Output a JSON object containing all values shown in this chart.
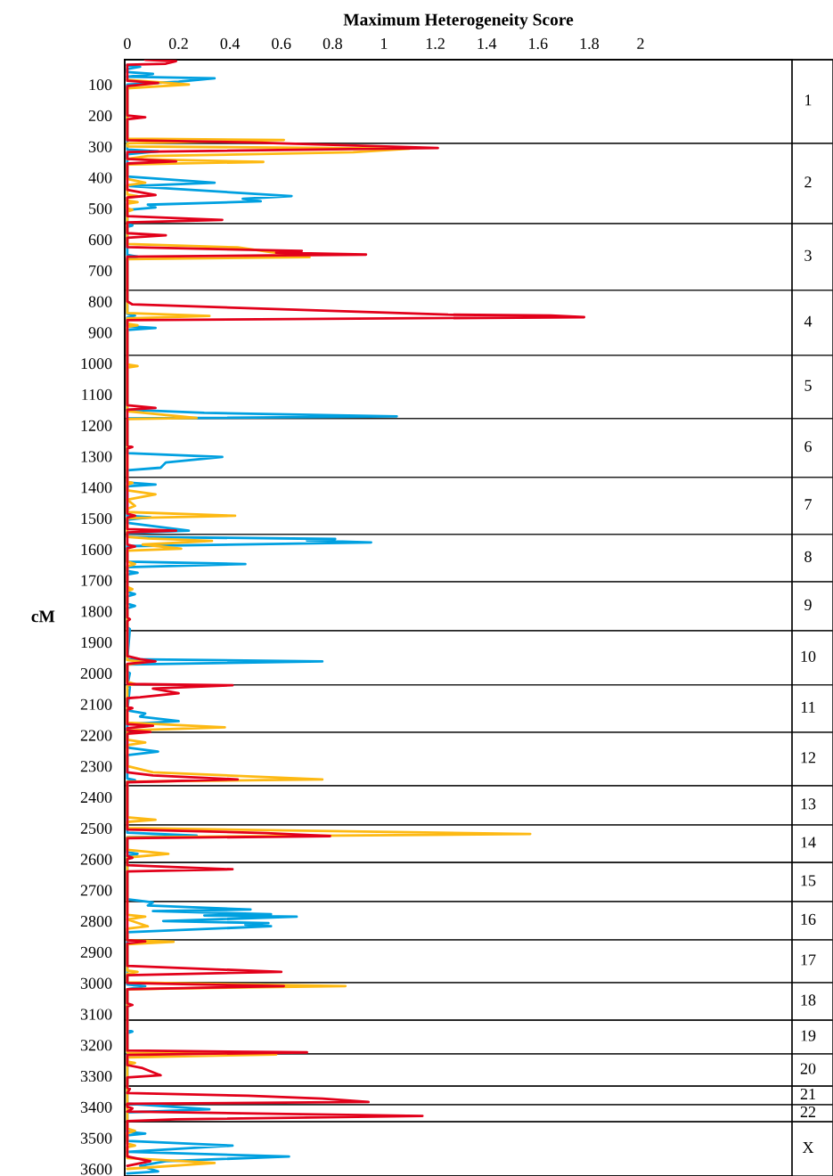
{
  "chart_data": {
    "type": "line",
    "orientation": "horizontal",
    "xlabel": "Maximum Heterogeneity Score",
    "ylabel": "cM",
    "xlim": [
      -0.01,
      2.59
    ],
    "xticks": [
      0,
      0.2,
      0.4,
      0.6,
      0.8,
      1,
      1.2,
      1.4,
      1.6,
      1.8,
      2
    ],
    "ylim": [
      3623,
      20
    ],
    "yticks": [
      100,
      200,
      300,
      400,
      500,
      600,
      700,
      800,
      900,
      1000,
      1100,
      1200,
      1300,
      1400,
      1500,
      1600,
      1700,
      1800,
      1900,
      2000,
      2100,
      2200,
      2300,
      2400,
      2500,
      2600,
      2700,
      2800,
      2900,
      3000,
      3100,
      3200,
      3300,
      3400,
      3500,
      3600
    ],
    "bands": [
      {
        "axis": "y",
        "from": 20,
        "to": 290,
        "label": "1"
      },
      {
        "axis": "y",
        "from": 290,
        "to": 549,
        "label": "2"
      },
      {
        "axis": "y",
        "from": 549,
        "to": 764,
        "label": "3"
      },
      {
        "axis": "y",
        "from": 764,
        "to": 974,
        "label": "4"
      },
      {
        "axis": "y",
        "from": 974,
        "to": 1178,
        "label": "5"
      },
      {
        "axis": "y",
        "from": 1178,
        "to": 1368,
        "label": "6"
      },
      {
        "axis": "y",
        "from": 1368,
        "to": 1552,
        "label": "7"
      },
      {
        "axis": "y",
        "from": 1552,
        "to": 1705,
        "label": "8"
      },
      {
        "axis": "y",
        "from": 1705,
        "to": 1863,
        "label": "9"
      },
      {
        "axis": "y",
        "from": 1863,
        "to": 2038,
        "label": "10"
      },
      {
        "axis": "y",
        "from": 2038,
        "to": 2191,
        "label": "11"
      },
      {
        "axis": "y",
        "from": 2191,
        "to": 2363,
        "label": "12"
      },
      {
        "axis": "y",
        "from": 2363,
        "to": 2490,
        "label": "13"
      },
      {
        "axis": "y",
        "from": 2490,
        "to": 2611,
        "label": "14"
      },
      {
        "axis": "y",
        "from": 2611,
        "to": 2737,
        "label": "15"
      },
      {
        "axis": "y",
        "from": 2737,
        "to": 2861,
        "label": "16"
      },
      {
        "axis": "y",
        "from": 2861,
        "to": 2999,
        "label": "17"
      },
      {
        "axis": "y",
        "from": 2999,
        "to": 3120,
        "label": "18"
      },
      {
        "axis": "y",
        "from": 3120,
        "to": 3229,
        "label": "19"
      },
      {
        "axis": "y",
        "from": 3229,
        "to": 3333,
        "label": "20"
      },
      {
        "axis": "y",
        "from": 3333,
        "to": 3393,
        "label": "21"
      },
      {
        "axis": "y",
        "from": 3393,
        "to": 3448,
        "label": "22"
      },
      {
        "axis": "y",
        "from": 3448,
        "to": 3623,
        "label": "X"
      }
    ],
    "series": [
      {
        "color": "#00a0e0",
        "x": [
          38,
          43,
          50,
          60,
          66,
          75,
          80,
          91,
          100,
          310,
          316,
          325,
          397,
          417,
          428,
          460,
          469,
          477,
          488,
          497,
          505,
          550,
          555,
          560,
          650,
          656,
          662,
          840,
          846,
          852,
          880,
          886,
          892,
          1150,
          1160,
          1171,
          1178,
          1290,
          1302,
          1320,
          1337,
          1345,
          1385,
          1391,
          1397,
          1492,
          1497,
          1505,
          1515,
          1540,
          1548,
          1560,
          1567,
          1572,
          1578,
          1590,
          1640,
          1648,
          1658,
          1670,
          1676,
          1682,
          1738,
          1745,
          1752,
          1776,
          1783,
          1790,
          1852,
          1858,
          1955,
          1962,
          1972,
          1995,
          2000,
          2040,
          2045,
          2120,
          2130,
          2140,
          2155,
          2165,
          2240,
          2253,
          2265,
          2340,
          2345,
          2350,
          2515,
          2524,
          2530,
          2578,
          2583,
          2590,
          2730,
          2740,
          2750,
          2763,
          2768,
          2778,
          2782,
          2786,
          2800,
          2807,
          2812,
          2817,
          2836,
          3005,
          3010,
          3020,
          3152,
          3157,
          3162,
          3390,
          3408,
          3418,
          3480,
          3486,
          3492,
          3510,
          3525,
          3545,
          3560,
          3575,
          3590,
          3608,
          3615
        ],
        "values": [
          0,
          0.05,
          0,
          0,
          0.1,
          0,
          0.34,
          0.2,
          0,
          0,
          0.12,
          0,
          0,
          0.34,
          0.01,
          0.64,
          0.45,
          0.52,
          0.08,
          0.11,
          0,
          0,
          0.02,
          0,
          0,
          0.04,
          0,
          0,
          0.03,
          0,
          0,
          0.11,
          0,
          0,
          0.3,
          1.05,
          0,
          0,
          0.37,
          0.15,
          0.13,
          0,
          0,
          0.11,
          0,
          0,
          0.09,
          0,
          0,
          0.24,
          0,
          0,
          0.81,
          0.7,
          0.95,
          0,
          0,
          0.46,
          0,
          0,
          0.04,
          0,
          0,
          0.03,
          0,
          0,
          0.03,
          0,
          0,
          0.01,
          0,
          0.76,
          0,
          0,
          0.01,
          0,
          0.01,
          0,
          0.07,
          0.05,
          0.2,
          0,
          0,
          0.12,
          0,
          0,
          0.03,
          0,
          0,
          0.27,
          0,
          0,
          0.04,
          0,
          0,
          0.1,
          0.08,
          0.48,
          0.1,
          0.56,
          0.3,
          0.66,
          0.14,
          0.55,
          0.46,
          0.56,
          0,
          0,
          0.07,
          0,
          0,
          0.02,
          0,
          0,
          0.32,
          0,
          0,
          0.07,
          0,
          0,
          0.41,
          0,
          0.63,
          0.15,
          0.05,
          0.12,
          0
        ]
      },
      {
        "color": "#fdb913",
        "x": [
          85,
          100,
          112,
          275,
          279,
          290,
          300,
          307,
          319,
          331,
          340,
          350,
          358,
          405,
          417,
          425,
          455,
          460,
          465,
          475,
          480,
          485,
          500,
          505,
          510,
          615,
          626,
          640,
          657,
          664,
          838,
          847,
          855,
          872,
          877,
          882,
          1004,
          1009,
          1014,
          1155,
          1176,
          1180,
          1380,
          1386,
          1392,
          1410,
          1423,
          1440,
          1460,
          1470,
          1480,
          1492,
          1500,
          1560,
          1565,
          1573,
          1585,
          1598,
          1605,
          1640,
          1648,
          1655,
          1722,
          1729,
          1735,
          1958,
          1965,
          1972,
          2028,
          2035,
          2040,
          2160,
          2175,
          2185,
          2215,
          2224,
          2232,
          2300,
          2320,
          2343,
          2350,
          2465,
          2473,
          2480,
          2500,
          2519,
          2530,
          2570,
          2583,
          2595,
          2780,
          2786,
          2795,
          2817,
          2825,
          2862,
          2867,
          2875,
          2960,
          2964,
          2970,
          2998,
          3010,
          3020,
          3225,
          3231,
          3240,
          3254,
          3258,
          3262,
          3470,
          3477,
          3485,
          3518,
          3525,
          3530,
          3565,
          3581,
          3600
        ],
        "values": [
          0,
          0.24,
          0,
          0,
          0.61,
          0,
          0,
          1.1,
          0.88,
          0.08,
          0,
          0.53,
          0,
          0,
          0.07,
          0,
          0,
          0.04,
          0,
          0,
          0.04,
          0,
          0,
          0.02,
          0,
          0,
          0.43,
          0.55,
          0.71,
          0,
          0,
          0.32,
          0,
          0,
          0.04,
          0,
          0,
          0.04,
          0,
          0,
          0.27,
          0,
          0,
          0.02,
          0,
          0,
          0.11,
          0,
          0.03,
          0,
          0,
          0.42,
          0,
          0,
          0.08,
          0.33,
          0.06,
          0.21,
          0,
          0,
          0.03,
          0,
          0,
          0.02,
          0,
          0,
          0.07,
          0,
          0,
          0.03,
          0,
          0,
          0.38,
          0,
          0,
          0.07,
          0,
          0,
          0.1,
          0.76,
          0,
          0,
          0.11,
          0,
          0,
          1.57,
          0,
          0,
          0.16,
          0,
          0,
          0.07,
          0,
          0.08,
          0,
          0,
          0.18,
          0,
          0,
          0.04,
          0,
          0,
          0.85,
          0,
          0,
          0.58,
          0,
          0,
          0.03,
          0,
          0,
          0.03,
          0,
          0,
          0.03,
          0,
          0,
          0.34,
          0
        ]
      },
      {
        "color": "#e2001a",
        "x": [
          20,
          25,
          33,
          36,
          88,
          95,
          105,
          200,
          206,
          212,
          280,
          287,
          305,
          318,
          340,
          348,
          355,
          440,
          457,
          465,
          525,
          537,
          545,
          580,
          587,
          595,
          625,
          637,
          643,
          649,
          656,
          800,
          810,
          843,
          846,
          851,
          861,
          1135,
          1144,
          1150,
          1265,
          1270,
          1275,
          1485,
          1492,
          1498,
          1535,
          1540,
          1546,
          1585,
          1591,
          1597,
          1820,
          1826,
          1832,
          1945,
          1955,
          1962,
          1970,
          2035,
          2039,
          2050,
          2065,
          2078,
          2081,
          2108,
          2113,
          2118,
          2165,
          2170,
          2178,
          2185,
          2190,
          2196,
          2320,
          2330,
          2343,
          2352,
          2505,
          2516,
          2526,
          2533,
          2590,
          2596,
          2600,
          2620,
          2633,
          2640,
          2862,
          2866,
          2872,
          2945,
          2964,
          2975,
          3000,
          3010,
          3020,
          3066,
          3071,
          3076,
          3218,
          3224,
          3232,
          3265,
          3275,
          3298,
          3305,
          3338,
          3342,
          3355,
          3364,
          3373,
          3384,
          3390,
          3400,
          3405,
          3415,
          3429,
          3440,
          3446,
          3560,
          3575,
          3590
        ],
        "values": [
          0.07,
          0.19,
          0.15,
          0,
          0,
          0.12,
          0,
          0,
          0.07,
          0,
          0,
          0.48,
          1.21,
          0,
          0,
          0.19,
          0,
          0,
          0.11,
          0,
          0,
          0.37,
          0,
          0,
          0.15,
          0,
          0,
          0.68,
          0.58,
          0.93,
          0,
          0,
          0.02,
          1.25,
          1.65,
          1.78,
          0,
          0,
          0.11,
          0,
          0,
          0.02,
          0,
          0,
          0.03,
          0,
          0,
          0.19,
          0,
          0,
          0.03,
          0,
          0,
          0.01,
          0,
          0,
          0.05,
          0.11,
          0,
          0,
          0.41,
          0.1,
          0.2,
          0.05,
          0,
          0,
          0.02,
          0,
          0,
          0.1,
          0,
          0,
          0.09,
          0,
          0,
          0.1,
          0.43,
          0,
          0,
          0.54,
          0.79,
          0,
          0,
          0.02,
          0,
          0,
          0.41,
          0,
          0,
          0.07,
          0,
          0,
          0.6,
          0,
          0,
          0.61,
          0,
          0,
          0.02,
          0,
          0,
          0.7,
          0,
          0,
          0.06,
          0.13,
          0,
          0,
          0.01,
          0,
          0.47,
          0.76,
          0.94,
          0,
          0,
          0.02,
          0,
          1.15,
          0.19,
          0,
          0,
          0.09,
          0
        ]
      }
    ]
  }
}
